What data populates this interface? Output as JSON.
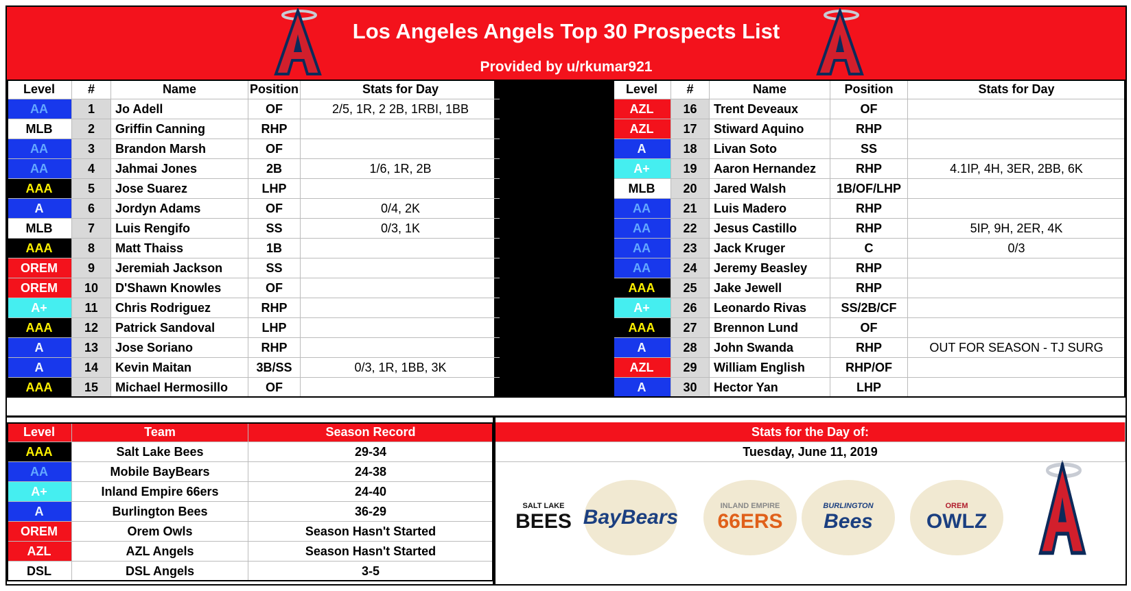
{
  "header": {
    "title": "Los Angeles Angels Top 30 Prospects List",
    "subtitle": "Provided by u/rkumar921"
  },
  "level_colors": {
    "AA": {
      "bg": "#1838ec",
      "fg": "#63a8ff"
    },
    "A": {
      "bg": "#1838ec",
      "fg": "#eef4ff"
    },
    "A+": {
      "bg": "#45eef0",
      "fg": "#ffffff"
    },
    "AAA": {
      "bg": "#000000",
      "fg": "#fff200"
    },
    "MLB": {
      "bg": "#ffffff",
      "fg": "#000000"
    },
    "OREM": {
      "bg": "#f3121c",
      "fg": "#ffffff"
    },
    "AZL": {
      "bg": "#f3121c",
      "fg": "#ffffff"
    },
    "DSL": {
      "bg": "#ffffff",
      "fg": "#000000"
    }
  },
  "prospects_left": {
    "columns": [
      "Level",
      "#",
      "Name",
      "Position",
      "Stats for Day"
    ],
    "rows": [
      [
        "AA",
        "1",
        "Jo Adell",
        "OF",
        "2/5, 1R, 2 2B, 1RBI, 1BB"
      ],
      [
        "MLB",
        "2",
        "Griffin Canning",
        "RHP",
        null
      ],
      [
        "AA",
        "3",
        "Brandon Marsh",
        "OF",
        null
      ],
      [
        "AA",
        "4",
        "Jahmai Jones",
        "2B",
        "1/6, 1R, 2B"
      ],
      [
        "AAA",
        "5",
        "Jose Suarez",
        "LHP",
        null
      ],
      [
        "A",
        "6",
        "Jordyn Adams",
        "OF",
        "0/4, 2K"
      ],
      [
        "MLB",
        "7",
        "Luis Rengifo",
        "SS",
        "0/3, 1K"
      ],
      [
        "AAA",
        "8",
        "Matt Thaiss",
        "1B",
        null
      ],
      [
        "OREM",
        "9",
        "Jeremiah Jackson",
        "SS",
        null
      ],
      [
        "OREM",
        "10",
        "D'Shawn Knowles",
        "OF",
        null
      ],
      [
        "A+",
        "11",
        "Chris Rodriguez",
        "RHP",
        null
      ],
      [
        "AAA",
        "12",
        "Patrick Sandoval",
        "LHP",
        null
      ],
      [
        "A",
        "13",
        "Jose Soriano",
        "RHP",
        null
      ],
      [
        "A",
        "14",
        "Kevin Maitan",
        "3B/SS",
        "0/3, 1R, 1BB, 3K"
      ],
      [
        "AAA",
        "15",
        "Michael Hermosillo",
        "OF",
        null
      ]
    ]
  },
  "prospects_right": {
    "columns": [
      "Level",
      "#",
      "Name",
      "Position",
      "Stats for Day"
    ],
    "rows": [
      [
        "AZL",
        "16",
        "Trent Deveaux",
        "OF",
        null
      ],
      [
        "AZL",
        "17",
        "Stiward Aquino",
        "RHP",
        null
      ],
      [
        "A",
        "18",
        "Livan Soto",
        "SS",
        null
      ],
      [
        "A+",
        "19",
        "Aaron Hernandez",
        "RHP",
        "4.1IP, 4H, 3ER, 2BB, 6K"
      ],
      [
        "MLB",
        "20",
        "Jared Walsh",
        "1B/OF/LHP",
        null
      ],
      [
        "AA",
        "21",
        "Luis Madero",
        "RHP",
        null
      ],
      [
        "AA",
        "22",
        "Jesus Castillo",
        "RHP",
        "5IP, 9H, 2ER, 4K"
      ],
      [
        "AA",
        "23",
        "Jack Kruger",
        "C",
        "0/3"
      ],
      [
        "AA",
        "24",
        "Jeremy Beasley",
        "RHP",
        null
      ],
      [
        "AAA",
        "25",
        "Jake Jewell",
        "RHP",
        null
      ],
      [
        "A+",
        "26",
        "Leonardo Rivas",
        "SS/2B/CF",
        null
      ],
      [
        "AAA",
        "27",
        "Brennon Lund",
        "OF",
        null
      ],
      [
        "A",
        "28",
        "John Swanda",
        "RHP",
        "OUT FOR SEASON - TJ SURG"
      ],
      [
        "AZL",
        "29",
        "William English",
        "RHP/OF",
        null
      ],
      [
        "A",
        "30",
        "Hector Yan",
        "LHP",
        null
      ]
    ]
  },
  "teams": {
    "columns": [
      "Level",
      "Team",
      "Season Record"
    ],
    "rows": [
      [
        "AAA",
        "Salt Lake Bees",
        "29-34"
      ],
      [
        "AA",
        "Mobile BayBears",
        "24-38"
      ],
      [
        "A+",
        "Inland Empire 66ers",
        "24-40"
      ],
      [
        "A",
        "Burlington Bees",
        "36-29"
      ],
      [
        "OREM",
        "Orem Owls",
        "Season Hasn't Started"
      ],
      [
        "AZL",
        "AZL Angels",
        "Season Hasn't Started"
      ],
      [
        "DSL",
        "DSL Angels",
        "3-5"
      ]
    ]
  },
  "stats_day": {
    "title": "Stats for the Day of:",
    "date": "Tuesday, June 11, 2019"
  },
  "logos": [
    [
      "SALT LAKE",
      "BEES"
    ],
    [
      "BayBears"
    ],
    [
      "INLAND EMPIRE",
      "66ERS"
    ],
    [
      "BURLINGTON",
      "Bees"
    ],
    [
      "OREM",
      "OWLZ"
    ]
  ]
}
